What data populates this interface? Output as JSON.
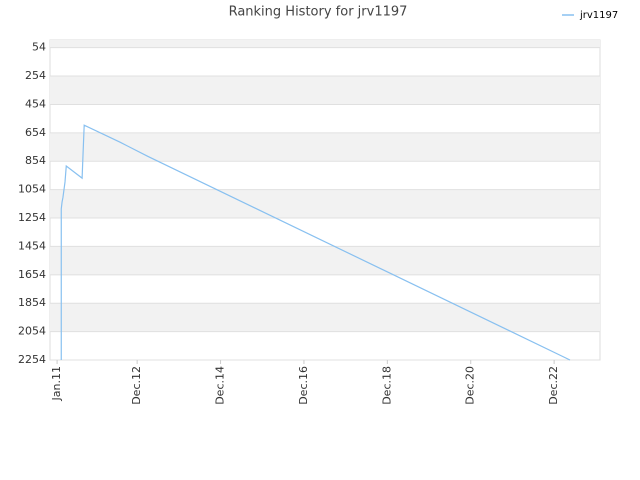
{
  "chart_data": {
    "type": "line",
    "title": "Ranking History for jrv1197",
    "x": [
      2011.1,
      2011.1,
      2011.12,
      2011.14,
      2011.19,
      2011.22,
      2011.6,
      2011.62,
      2011.65,
      2012.51,
      2013.18,
      2023.3
    ],
    "series": [
      {
        "name": "jrv1197",
        "color": "#88c0f0",
        "values": [
          2254,
          1190,
          1140,
          1110,
          1000,
          888,
          973,
          820,
          600,
          720,
          820,
          2254
        ]
      }
    ],
    "xlim": [
      2010.83,
      2024.02
    ],
    "xticks": [
      {
        "value": 2011.0,
        "label": "Jan.11"
      },
      {
        "value": 2012.92,
        "label": "Dec.12"
      },
      {
        "value": 2014.92,
        "label": "Dec.14"
      },
      {
        "value": 2016.92,
        "label": "Dec.16"
      },
      {
        "value": 2018.92,
        "label": "Dec.18"
      },
      {
        "value": 2020.92,
        "label": "Dec.20"
      },
      {
        "value": 2022.92,
        "label": "Dec.22"
      }
    ],
    "ylim": [
      2254,
      0
    ],
    "yticks": [
      54,
      254,
      454,
      654,
      854,
      1054,
      1254,
      1454,
      1654,
      1854,
      2054,
      2254
    ],
    "grid": true,
    "legend": "top-right"
  }
}
